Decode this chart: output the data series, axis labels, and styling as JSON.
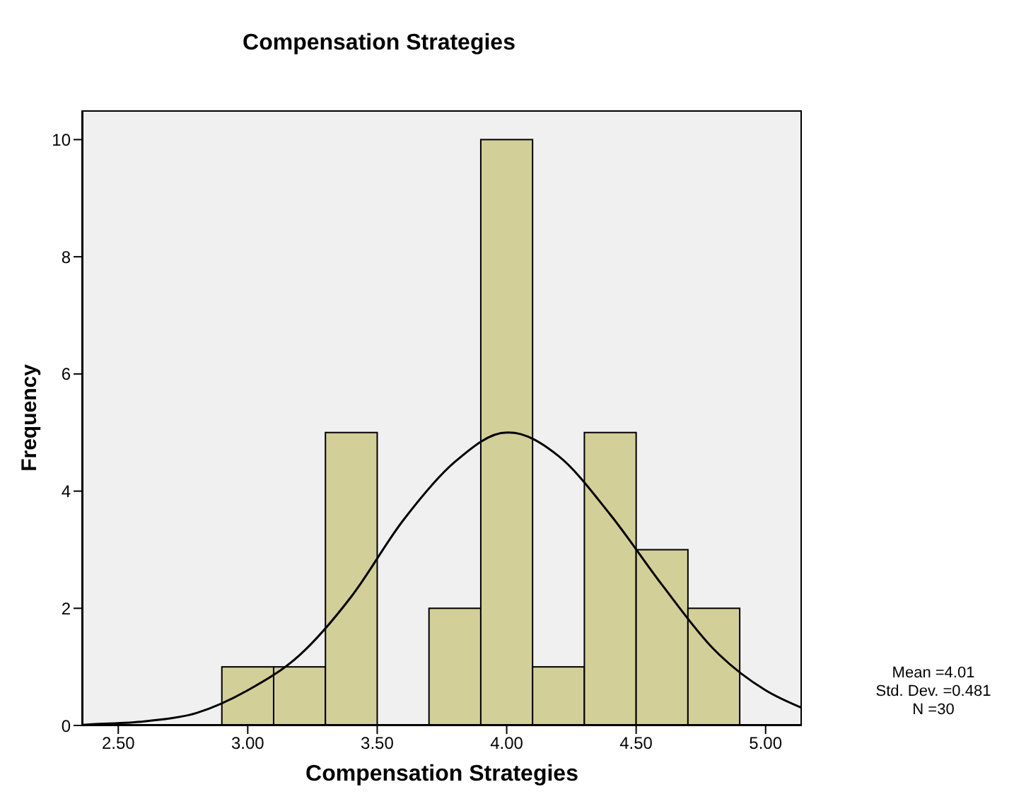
{
  "chart_data": {
    "type": "histogram",
    "title": "Compensation Strategies",
    "xlabel": "Compensation Strategies",
    "ylabel": "Frequency",
    "bins": [
      2.9,
      3.1,
      3.3,
      3.5,
      3.7,
      3.9,
      4.1,
      4.3,
      4.5,
      4.7,
      4.9
    ],
    "values": [
      1,
      1,
      5,
      0,
      2,
      10,
      1,
      5,
      3,
      2
    ],
    "color": "#d3cf98",
    "series": [
      {
        "type": "line",
        "color": "#000000",
        "x": [
          2.36,
          2.4,
          2.6,
          2.8,
          3.0,
          3.2,
          3.4,
          3.6,
          3.8,
          4.0,
          4.01,
          4.2,
          4.4,
          4.6,
          4.8,
          5.0,
          5.14
        ],
        "values": [
          0.01,
          0.02,
          0.07,
          0.21,
          0.6,
          1.2,
          2.2,
          3.5,
          4.5,
          5.0,
          5.0,
          4.6,
          3.6,
          2.4,
          1.3,
          0.6,
          0.3
        ]
      }
    ],
    "xlim": [
      2.36,
      5.14
    ],
    "xticks": [
      {
        "value": 2.5,
        "label": "2.50"
      },
      {
        "value": 3,
        "label": "3.00"
      },
      {
        "value": 3.5,
        "label": "3.50"
      },
      {
        "value": 4,
        "label": "4.00"
      },
      {
        "value": 4.5,
        "label": "4.50"
      },
      {
        "value": 5,
        "label": "5.00"
      }
    ],
    "ylim": [
      0,
      10.5
    ],
    "yticks": [
      0,
      2,
      4,
      6,
      8,
      10
    ],
    "grid": false,
    "marker": "none",
    "annotations": [
      "Mean =4.01",
      "Std. Dev. =0.481",
      "N =30"
    ]
  }
}
